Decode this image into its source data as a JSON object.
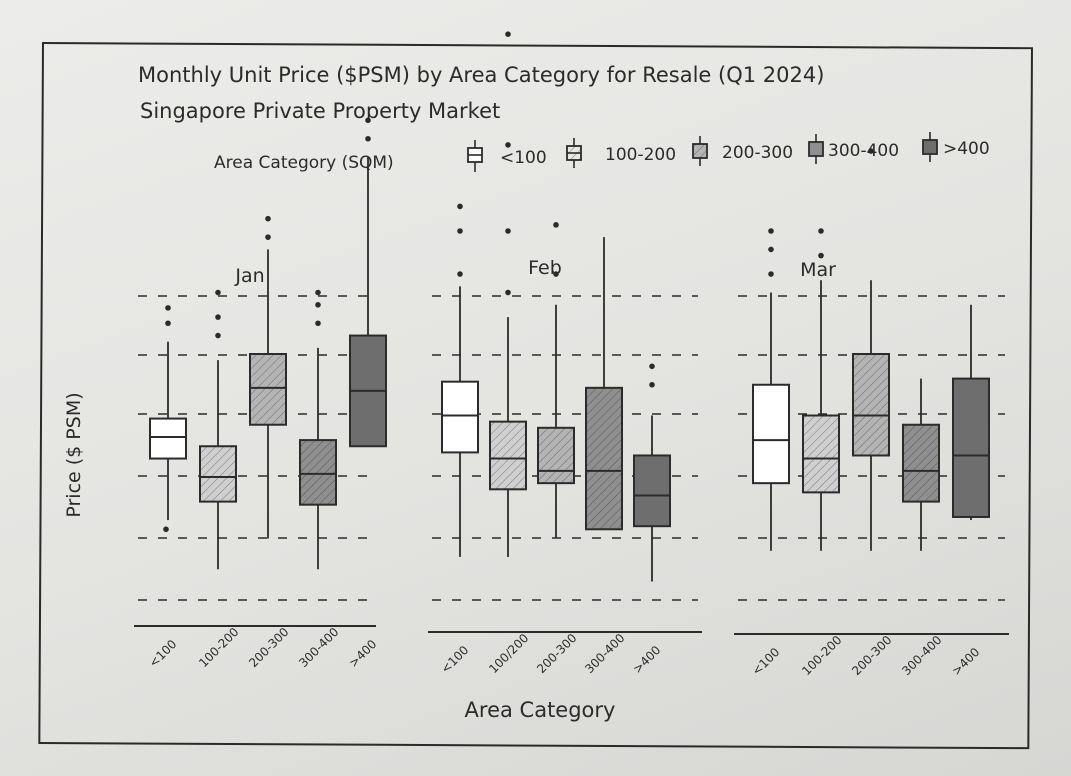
{
  "chart_data": {
    "type": "boxplot",
    "title": "Monthly Unit Price ($PSM) by Area Category for Resale (Q1 2024)",
    "subtitle": "Singapore Private Property Market",
    "legend": {
      "title": "Area Category (SQM)",
      "entries": [
        "<100",
        "100-200",
        "200-300",
        "300-400",
        ">400"
      ],
      "placement": "top"
    },
    "ylabel": "Price ($ PSM)",
    "xlabel": "Area Category",
    "y_ticks_shown": false,
    "gridlines": "dashed",
    "categories": [
      "<100",
      "100-200",
      "200-300",
      "300-400",
      ">400"
    ],
    "category_labels": {
      "Jan": [
        "<100",
        "100-200",
        "200-300",
        "300-400",
        ">400"
      ],
      "Feb": [
        "<100",
        "100/200",
        "200-300",
        "300-400",
        ">400"
      ],
      "Mar": [
        "<100",
        "100-200",
        "200-300",
        "300-400",
        ">400"
      ]
    },
    "panels": [
      {
        "month": "Jan",
        "boxes": [
          {
            "category": "<100",
            "whisker_low": 2.3,
            "q1": 3.3,
            "median": 3.65,
            "q3": 3.95,
            "whisker_high": 5.2,
            "outliers": [
              5.5,
              5.75,
              2.15
            ]
          },
          {
            "category": "100-200",
            "whisker_low": 1.5,
            "q1": 2.6,
            "median": 3.0,
            "q3": 3.5,
            "whisker_high": 4.9,
            "outliers": [
              5.3,
              5.6,
              6.0
            ]
          },
          {
            "category": "200-300",
            "whisker_low": 2.0,
            "q1": 3.85,
            "median": 4.45,
            "q3": 5.0,
            "whisker_high": 6.7,
            "outliers": [
              6.9,
              7.2
            ]
          },
          {
            "category": "300-400",
            "whisker_low": 1.5,
            "q1": 2.55,
            "median": 3.05,
            "q3": 3.6,
            "whisker_high": 5.1,
            "outliers": [
              5.5,
              5.8,
              6.0
            ]
          },
          {
            "category": ">400",
            "whisker_low": 3.5,
            "q1": 3.5,
            "median": 4.4,
            "q3": 5.3,
            "whisker_high": 8.2,
            "outliers": [
              8.5,
              8.8,
              11.6
            ]
          }
        ]
      },
      {
        "month": "Feb",
        "boxes": [
          {
            "category": "<100",
            "whisker_low": 1.7,
            "q1": 3.4,
            "median": 4.0,
            "q3": 4.55,
            "whisker_high": 6.1,
            "outliers": [
              6.3,
              7.0,
              7.4
            ]
          },
          {
            "category": "100-200",
            "whisker_low": 1.7,
            "q1": 2.8,
            "median": 3.3,
            "q3": 3.9,
            "whisker_high": 5.6,
            "outliers": [
              6.0,
              7.0,
              8.4,
              10.2
            ]
          },
          {
            "category": "200-300",
            "whisker_low": 2.0,
            "q1": 2.9,
            "median": 3.1,
            "q3": 3.8,
            "whisker_high": 5.8,
            "outliers": [
              6.3,
              7.1
            ]
          },
          {
            "category": "300-400",
            "whisker_low": 2.15,
            "q1": 2.15,
            "median": 3.1,
            "q3": 4.45,
            "whisker_high": 6.9,
            "outliers": []
          },
          {
            "category": ">400",
            "whisker_low": 1.3,
            "q1": 2.2,
            "median": 2.7,
            "q3": 3.35,
            "whisker_high": 4.0,
            "outliers": [
              4.5,
              4.8
            ]
          }
        ]
      },
      {
        "month": "Mar",
        "boxes": [
          {
            "category": "<100",
            "whisker_low": 1.8,
            "q1": 2.9,
            "median": 3.6,
            "q3": 4.5,
            "whisker_high": 6.0,
            "outliers": [
              6.3,
              6.7,
              7.0
            ]
          },
          {
            "category": "100-200",
            "whisker_low": 1.8,
            "q1": 2.75,
            "median": 3.3,
            "q3": 4.0,
            "whisker_high": 6.2,
            "outliers": [
              6.6,
              7.0
            ]
          },
          {
            "category": "200-300",
            "whisker_low": 1.8,
            "q1": 3.35,
            "median": 4.0,
            "q3": 5.0,
            "whisker_high": 6.2,
            "outliers": [
              8.3
            ]
          },
          {
            "category": "300-400",
            "whisker_low": 1.8,
            "q1": 2.6,
            "median": 3.1,
            "q3": 3.85,
            "whisker_high": 4.6,
            "outliers": []
          },
          {
            "category": ">400",
            "whisker_low": 2.3,
            "q1": 2.35,
            "median": 3.35,
            "q3": 4.6,
            "whisker_high": 5.8,
            "outliers": []
          }
        ]
      }
    ],
    "styles": {
      "fills": [
        "#ffffff",
        "#cfcfcf",
        "#b4b4b4",
        "#8f8f8f",
        "#6e6e6e"
      ],
      "ink": "#2b2b2b"
    }
  }
}
